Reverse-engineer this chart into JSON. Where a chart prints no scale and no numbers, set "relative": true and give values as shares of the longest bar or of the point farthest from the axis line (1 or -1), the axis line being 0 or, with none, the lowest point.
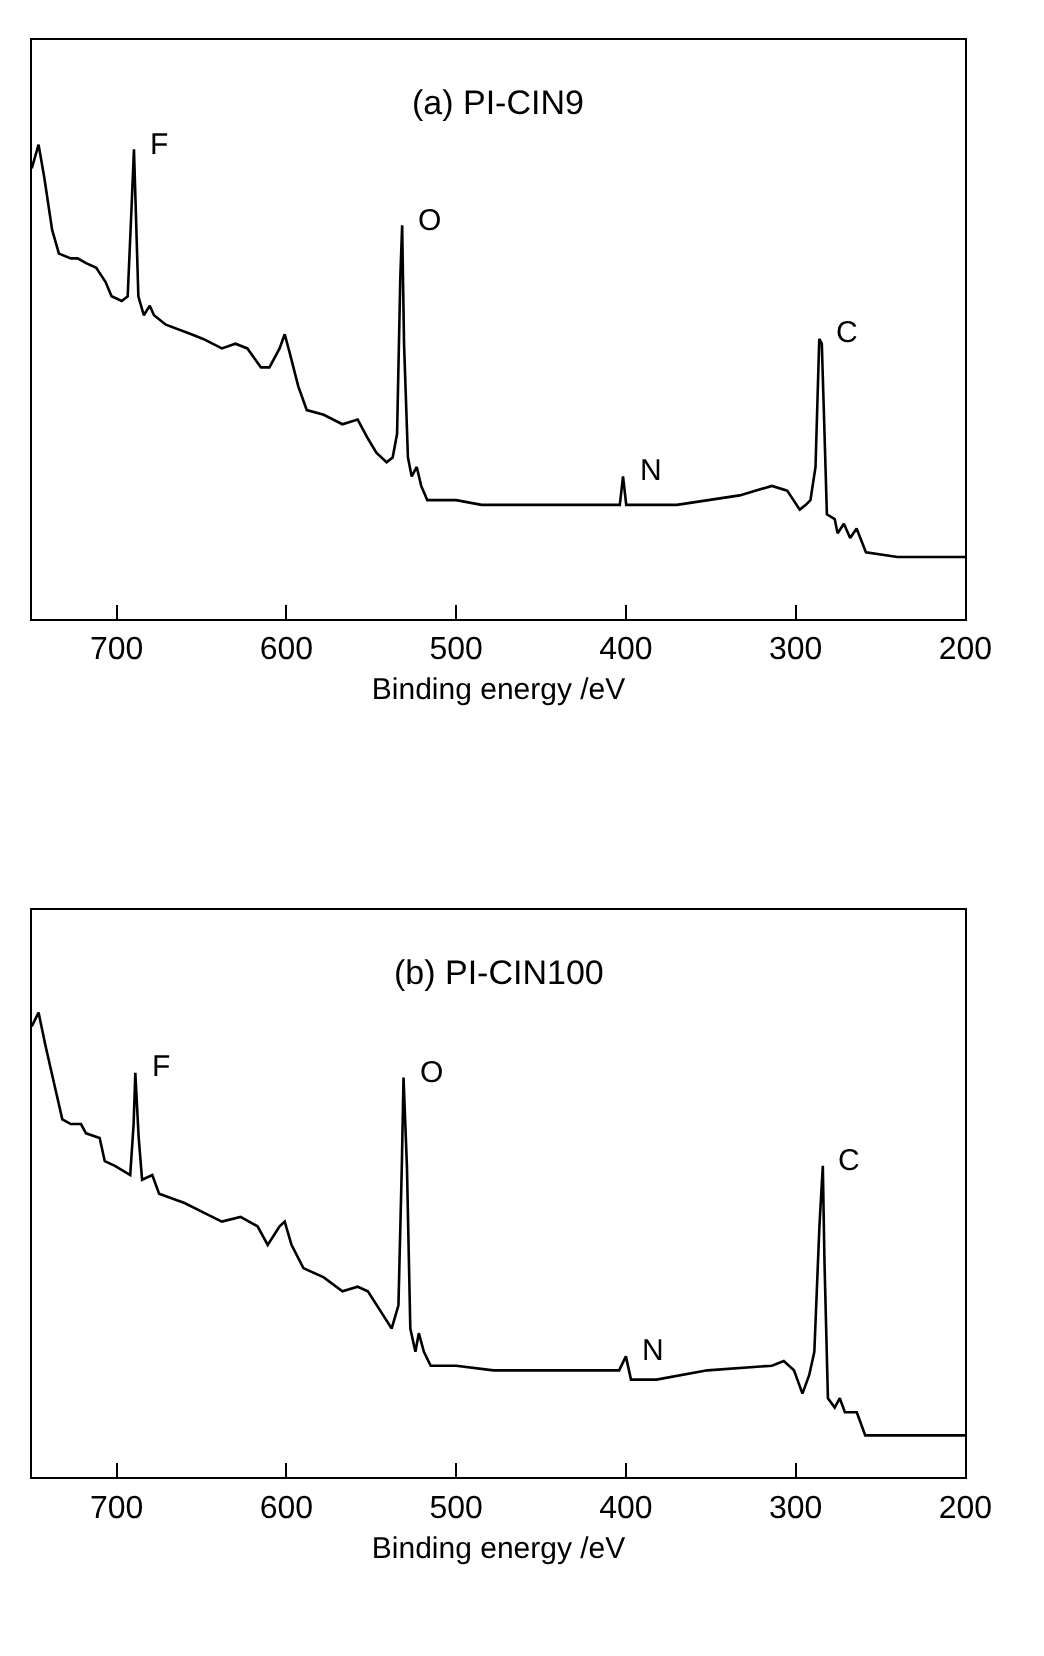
{
  "chart_data": [
    {
      "type": "line",
      "title": "(a) PI-CIN9",
      "xlabel": "Binding energy /eV",
      "relative": true,
      "xlim": [
        750,
        200
      ],
      "xticks": [
        700,
        600,
        500,
        400,
        300,
        200
      ],
      "grid": false,
      "marker": "none",
      "line_style": "solid",
      "x": [
        750,
        746,
        742.6,
        738,
        734,
        727,
        723,
        718,
        712,
        706.5,
        703,
        697,
        693.5,
        691.3,
        689.8,
        688.7,
        687.2,
        684,
        680.5,
        678,
        671,
        656,
        649,
        638,
        630,
        623,
        615,
        610,
        604,
        601,
        598,
        593,
        588,
        578,
        567,
        558,
        552,
        547,
        541,
        537.4,
        534.8,
        532.9,
        531.8,
        530.7,
        528.4,
        526.2,
        523.2,
        520.6,
        517,
        500,
        485,
        463,
        426,
        403.6,
        401.7,
        399.8,
        389,
        370,
        351.5,
        333,
        314,
        305,
        297.6,
        294,
        291.3,
        288.3,
        286.1,
        284.6,
        283.5,
        281.6,
        277,
        275.3,
        271.6,
        267.9,
        264.1,
        258.6,
        240,
        200
      ],
      "series": [
        {
          "color": "#000000",
          "values": [
            0.95,
            1.0,
            0.93,
            0.82,
            0.77,
            0.76,
            0.76,
            0.75,
            0.74,
            0.71,
            0.68,
            0.67,
            0.68,
            0.86,
            0.99,
            0.86,
            0.68,
            0.64,
            0.66,
            0.64,
            0.62,
            0.6,
            0.59,
            0.57,
            0.58,
            0.57,
            0.53,
            0.53,
            0.57,
            0.6,
            0.56,
            0.49,
            0.44,
            0.43,
            0.41,
            0.42,
            0.38,
            0.35,
            0.33,
            0.34,
            0.39,
            0.72,
            0.83,
            0.58,
            0.34,
            0.3,
            0.32,
            0.28,
            0.25,
            0.25,
            0.24,
            0.24,
            0.24,
            0.24,
            0.3,
            0.24,
            0.24,
            0.24,
            0.25,
            0.26,
            0.28,
            0.27,
            0.23,
            0.24,
            0.25,
            0.32,
            0.59,
            0.58,
            0.45,
            0.22,
            0.21,
            0.18,
            0.2,
            0.17,
            0.19,
            0.14,
            0.13,
            0.13
          ]
        }
      ],
      "annotations": [
        {
          "text": "F",
          "x": 689.8,
          "y": 0.99
        },
        {
          "text": "O",
          "x": 531.8,
          "y": 0.83
        },
        {
          "text": "N",
          "x": 401.7,
          "y": 0.3
        },
        {
          "text": "C",
          "x": 286.1,
          "y": 0.59
        }
      ]
    },
    {
      "type": "line",
      "title": "(b) PI-CIN100",
      "xlabel": "Binding energy /eV",
      "relative": true,
      "xlim": [
        750,
        200
      ],
      "xticks": [
        700,
        600,
        500,
        400,
        300,
        200
      ],
      "grid": false,
      "marker": "none",
      "line_style": "solid",
      "x": [
        750,
        746,
        742,
        737,
        732,
        727,
        721,
        718,
        710,
        707,
        701,
        692,
        690,
        689,
        687,
        685,
        679,
        675,
        660,
        649,
        638,
        627,
        617,
        611,
        604,
        601,
        597,
        590,
        578,
        567,
        558,
        552,
        545,
        538,
        534,
        532,
        531,
        529,
        527,
        524,
        522,
        519,
        515,
        500,
        478,
        444,
        404,
        400,
        397,
        382,
        352,
        314,
        307,
        301,
        296,
        292,
        289,
        286,
        284,
        283,
        281,
        277,
        274,
        271,
        264,
        259,
        200
      ],
      "series": [
        {
          "color": "#000000",
          "values": [
            0.97,
            1.0,
            0.93,
            0.85,
            0.77,
            0.76,
            0.76,
            0.74,
            0.73,
            0.68,
            0.67,
            0.65,
            0.76,
            0.87,
            0.73,
            0.64,
            0.65,
            0.61,
            0.59,
            0.57,
            0.55,
            0.56,
            0.54,
            0.5,
            0.54,
            0.55,
            0.5,
            0.45,
            0.43,
            0.4,
            0.41,
            0.4,
            0.36,
            0.32,
            0.37,
            0.67,
            0.86,
            0.67,
            0.32,
            0.27,
            0.31,
            0.27,
            0.24,
            0.24,
            0.23,
            0.23,
            0.23,
            0.26,
            0.21,
            0.21,
            0.23,
            0.24,
            0.25,
            0.23,
            0.18,
            0.22,
            0.27,
            0.54,
            0.67,
            0.46,
            0.17,
            0.15,
            0.17,
            0.14,
            0.14,
            0.09,
            0.09
          ]
        }
      ],
      "annotations": [
        {
          "text": "F",
          "x": 689,
          "y": 0.87
        },
        {
          "text": "O",
          "x": 531,
          "y": 0.86
        },
        {
          "text": "N",
          "x": 400,
          "y": 0.26
        },
        {
          "text": "C",
          "x": 284,
          "y": 0.67
        }
      ]
    }
  ]
}
